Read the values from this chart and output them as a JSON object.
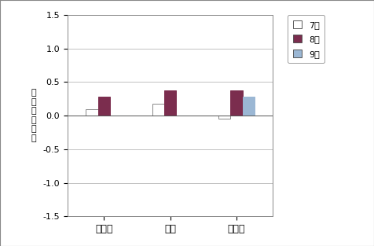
{
  "categories": [
    "三重県",
    "津市",
    "松阪市"
  ],
  "series": {
    "7月": [
      0.1,
      0.18,
      -0.05
    ],
    "8月": [
      0.28,
      0.38,
      0.38
    ],
    "9月": [
      0.0,
      0.0,
      0.28
    ]
  },
  "colors": {
    "7月": "#ffffff",
    "8月": "#7B2D4E",
    "9月": "#9BB7D4"
  },
  "edgecolors": {
    "7月": "#888888",
    "8月": "#7B2D4E",
    "9月": "#9BB7D4"
  },
  "ylabel": "対\n前\n月\n上\n昇\n率",
  "ylim": [
    -1.5,
    1.5
  ],
  "yticks": [
    -1.5,
    -1.0,
    -0.5,
    0.0,
    0.5,
    1.0,
    1.5
  ],
  "legend_labels": [
    "7月",
    "8月",
    "9月"
  ],
  "background_color": "#ffffff",
  "bar_width": 0.18,
  "outer_border_color": "#888888"
}
